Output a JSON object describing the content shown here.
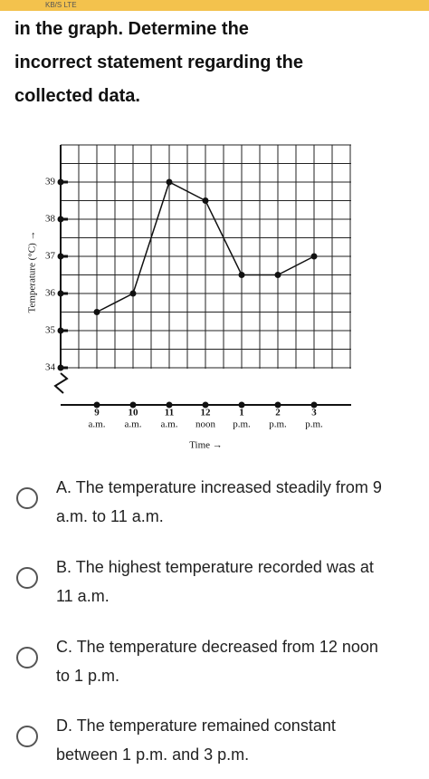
{
  "status_bar": {
    "text": "KB/S LTE"
  },
  "question": "in the graph. Determine the incorrect statement regarding the collected data.",
  "chart_data": {
    "type": "line",
    "y_label": "Temperature (°C) →",
    "x_label": "Time →",
    "categories": [
      "9",
      "10",
      "11",
      "12",
      "1",
      "2",
      "3"
    ],
    "category_periods": [
      "a.m.",
      "a.m.",
      "a.m.",
      "noon",
      "p.m.",
      "p.m.",
      "p.m."
    ],
    "values": [
      35.5,
      36,
      39,
      38.5,
      36.5,
      36.5,
      37
    ],
    "color": "#111111",
    "ylim": [
      33,
      40
    ],
    "yticks": [
      34,
      35,
      36,
      37,
      38,
      39
    ],
    "grid": true
  },
  "options": [
    {
      "letter": "A.",
      "text": "The temperature increased steadily from 9 a.m. to 11 a.m."
    },
    {
      "letter": "B.",
      "text": "The highest temperature recorded was at 11 a.m."
    },
    {
      "letter": "C.",
      "text": "The temperature decreased from 12 noon to 1 p.m."
    },
    {
      "letter": "D.",
      "text": "The temperature remained constant between 1 p.m. and 3 p.m."
    }
  ]
}
